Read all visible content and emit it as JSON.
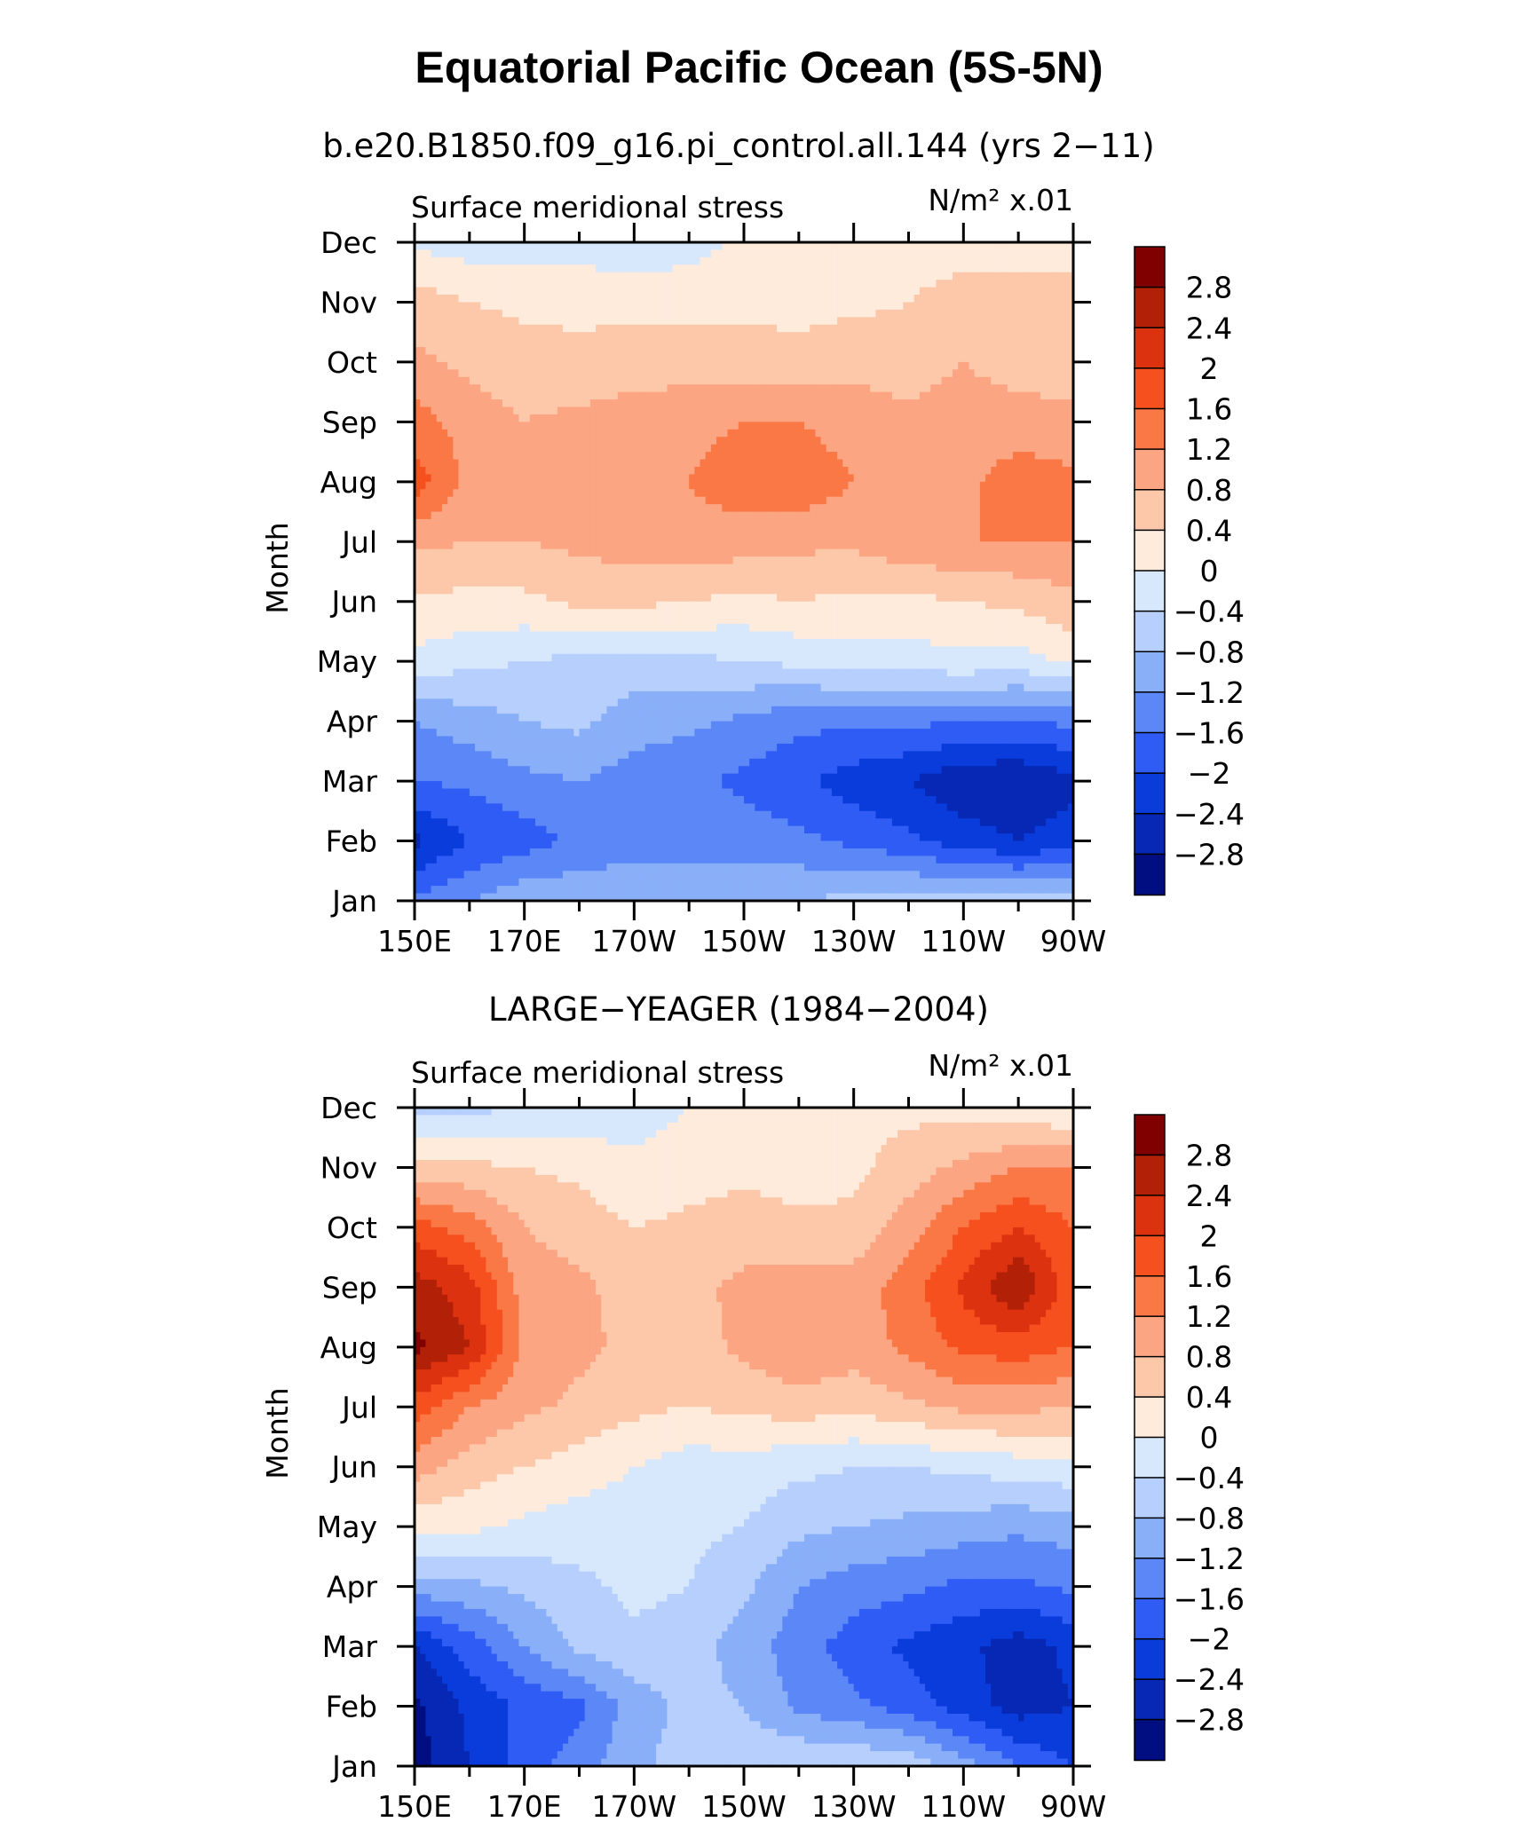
{
  "figure": {
    "title": "Equatorial Pacific Ocean (5S-5N)"
  },
  "colorbar": {
    "levels": [
      "2.8",
      "2.4",
      "2",
      "1.6",
      "1.2",
      "0.8",
      "0.4",
      "0",
      "−0.4",
      "−0.8",
      "−1.2",
      "−1.6",
      "−2",
      "−2.4",
      "−2.8"
    ],
    "colors": [
      "#800000",
      "#b22008",
      "#dc3210",
      "#f5501e",
      "#fa7846",
      "#fca582",
      "#fdc8aa",
      "#feebdc",
      "#d7e8fd",
      "#b7cffc",
      "#8aaff9",
      "#5c88f7",
      "#2e5cf5",
      "#0a3cdc",
      "#0628b4",
      "#000e82"
    ]
  },
  "chart_data": [
    {
      "type": "heatmap",
      "subtitle": "b.e20.B1850.f09_g16.pi_control.all.144 (yrs 2−11)",
      "left_label": "Surface meridional stress",
      "right_label": "N/m² x.01",
      "ylabel": "Month",
      "xticks": [
        "150E",
        "170E",
        "170W",
        "150W",
        "130W",
        "110W",
        "90W"
      ],
      "yticks": [
        "Jan",
        "Feb",
        "Mar",
        "Apr",
        "May",
        "Jun",
        "Jul",
        "Aug",
        "Sep",
        "Oct",
        "Nov",
        "Dec"
      ],
      "x_lon_east": [
        150,
        160,
        170,
        180,
        190,
        200,
        210,
        220,
        230,
        240,
        250,
        260,
        270
      ],
      "rows_jan_to_dec": [
        [
          -1.5,
          -1.2,
          -0.9,
          -0.9,
          -1.0,
          -1.0,
          -0.9,
          -0.8,
          -0.7,
          -0.6,
          -0.6,
          -0.6,
          -0.6
        ],
        [
          -2.5,
          -2.0,
          -1.8,
          -1.5,
          -1.3,
          -1.3,
          -1.4,
          -1.5,
          -1.7,
          -1.9,
          -2.2,
          -2.4,
          -2.2
        ],
        [
          -1.6,
          -1.5,
          -1.3,
          -1.2,
          -1.4,
          -1.5,
          -1.7,
          -1.9,
          -2.2,
          -2.4,
          -2.7,
          -2.8,
          -2.5
        ],
        [
          -1.2,
          -1.0,
          -0.8,
          -0.7,
          -1.0,
          -1.1,
          -1.3,
          -1.5,
          -1.5,
          -1.5,
          -1.6,
          -1.6,
          -1.5
        ],
        [
          -0.1,
          -0.3,
          -0.4,
          -0.5,
          -0.6,
          -0.5,
          -0.4,
          -0.3,
          -0.2,
          -0.2,
          -0.1,
          -0.2,
          0.1
        ],
        [
          0.3,
          0.3,
          0.3,
          0.5,
          0.5,
          0.4,
          0.3,
          0.4,
          0.3,
          0.3,
          0.4,
          0.5,
          0.7
        ],
        [
          0.9,
          0.8,
          0.8,
          0.9,
          1.0,
          1.1,
          1.0,
          0.9,
          0.9,
          1.1,
          1.2,
          1.2,
          1.2
        ],
        [
          1.8,
          1.1,
          1.0,
          1.0,
          1.1,
          1.2,
          1.4,
          1.5,
          1.2,
          1.0,
          1.1,
          1.4,
          1.3
        ],
        [
          1.4,
          1.0,
          0.8,
          0.9,
          1.0,
          1.1,
          1.2,
          1.2,
          1.0,
          0.9,
          1.0,
          1.0,
          0.9
        ],
        [
          0.9,
          0.7,
          0.6,
          0.5,
          0.6,
          0.6,
          0.6,
          0.6,
          0.7,
          0.6,
          0.8,
          0.6,
          0.6
        ],
        [
          0.6,
          0.4,
          0.3,
          0.3,
          0.3,
          0.3,
          0.3,
          0.2,
          0.3,
          0.4,
          0.5,
          0.5,
          0.5
        ],
        [
          -0.1,
          -0.2,
          -0.2,
          -0.2,
          -0.3,
          -0.2,
          0.1,
          0.2,
          0.3,
          0.3,
          0.3,
          0.3,
          0.3
        ]
      ],
      "zlim": [
        -3.0,
        3.0
      ]
    },
    {
      "type": "heatmap",
      "subtitle": "LARGE−YEAGER (1984−2004)",
      "left_label": "Surface meridional stress",
      "right_label": "N/m² x.01",
      "ylabel": "Month",
      "xticks": [
        "150E",
        "170E",
        "170W",
        "150W",
        "130W",
        "110W",
        "90W"
      ],
      "yticks": [
        "Jan",
        "Feb",
        "Mar",
        "Apr",
        "May",
        "Jun",
        "Jul",
        "Aug",
        "Sep",
        "Oct",
        "Nov",
        "Dec"
      ],
      "x_lon_east": [
        150,
        160,
        170,
        180,
        190,
        200,
        210,
        220,
        230,
        240,
        250,
        260,
        270
      ],
      "rows_jan_to_dec": [
        [
          -3.0,
          -2.4,
          -1.8,
          -1.4,
          -0.9,
          -0.6,
          -0.5,
          -0.4,
          -0.4,
          -0.5,
          -1.0,
          -1.6,
          -2.0
        ],
        [
          -2.9,
          -2.3,
          -1.9,
          -1.7,
          -1.0,
          -0.7,
          -0.8,
          -1.3,
          -1.5,
          -1.8,
          -2.2,
          -2.6,
          -2.4
        ],
        [
          -2.4,
          -1.8,
          -1.2,
          -0.7,
          -0.5,
          -0.6,
          -1.0,
          -1.4,
          -1.8,
          -2.1,
          -2.3,
          -2.6,
          -2.3
        ],
        [
          -1.0,
          -0.9,
          -0.7,
          -0.5,
          -0.3,
          -0.4,
          -0.7,
          -1.2,
          -1.4,
          -1.5,
          -1.7,
          -1.7,
          -1.5
        ],
        [
          0.1,
          0.1,
          -0.1,
          -0.2,
          -0.2,
          -0.3,
          -0.4,
          -0.7,
          -0.8,
          -0.9,
          -1.0,
          -1.1,
          -1.0
        ],
        [
          1.0,
          0.6,
          0.4,
          0.2,
          0.0,
          -0.2,
          -0.2,
          -0.3,
          -0.4,
          -0.4,
          -0.3,
          -0.2,
          -0.1
        ],
        [
          1.8,
          1.2,
          0.9,
          0.7,
          0.5,
          0.4,
          0.5,
          0.6,
          0.5,
          0.7,
          0.9,
          0.9,
          0.8
        ],
        [
          2.9,
          2.4,
          1.1,
          0.9,
          0.7,
          0.6,
          0.9,
          1.2,
          1.0,
          1.3,
          1.7,
          1.8,
          1.6
        ],
        [
          2.6,
          2.2,
          1.0,
          0.9,
          0.6,
          0.7,
          0.9,
          1.0,
          1.0,
          1.4,
          2.1,
          2.8,
          1.7
        ],
        [
          1.8,
          1.4,
          0.8,
          0.6,
          0.4,
          0.5,
          0.6,
          0.5,
          0.5,
          1.0,
          1.6,
          2.0,
          1.6
        ],
        [
          0.5,
          0.5,
          0.4,
          0.3,
          0.1,
          0.2,
          0.3,
          0.2,
          0.3,
          0.6,
          0.9,
          1.2,
          1.2
        ],
        [
          -0.6,
          -0.5,
          -0.4,
          -0.3,
          -0.2,
          0.0,
          0.1,
          0.2,
          0.3,
          0.3,
          0.2,
          0.1,
          0.0
        ]
      ],
      "zlim": [
        -3.0,
        3.0
      ]
    }
  ]
}
